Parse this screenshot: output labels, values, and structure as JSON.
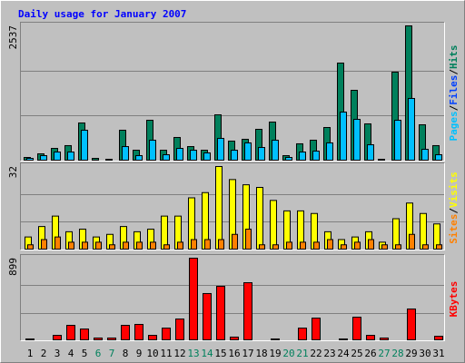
{
  "chart_data": {
    "type": "bar",
    "title": "Daily usage for January 2007",
    "categories": [
      "1",
      "2",
      "3",
      "4",
      "5",
      "6",
      "7",
      "8",
      "9",
      "10",
      "11",
      "12",
      "13",
      "14",
      "15",
      "16",
      "17",
      "18",
      "19",
      "20",
      "21",
      "22",
      "23",
      "24",
      "25",
      "26",
      "27",
      "28",
      "29",
      "30",
      "31"
    ],
    "category_colors": [
      "#000000",
      "#000000",
      "#000000",
      "#000000",
      "#000000",
      "#00805c",
      "#00805c",
      "#000000",
      "#000000",
      "#000000",
      "#000000",
      "#000000",
      "#00805c",
      "#00805c",
      "#000000",
      "#000000",
      "#000000",
      "#000000",
      "#000000",
      "#00805c",
      "#00805c",
      "#000000",
      "#000000",
      "#000000",
      "#000000",
      "#000000",
      "#00805c",
      "#00805c",
      "#000000",
      "#000000",
      "#000000"
    ],
    "separator": "/",
    "panels": [
      {
        "ylim": [
          0,
          2537
        ],
        "yticks": [
          2537
        ],
        "legend": [
          {
            "label": "Pages",
            "color": "#00c0ff"
          },
          {
            "label": "Files",
            "color": "#0040ff"
          },
          {
            "label": "Hits",
            "color": "#00805c"
          }
        ],
        "series": [
          {
            "name": "Hits",
            "color": "#00805c",
            "values": [
              68,
              136,
              238,
              290,
              715,
              51,
              34,
              579,
              204,
              766,
              204,
              443,
              272,
              204,
              868,
              375,
              409,
              596,
              732,
              102,
              324,
              392,
              630,
              1839,
              1328,
              698,
              34,
              1669,
              2537,
              681,
              290
            ]
          },
          {
            "name": "Pages",
            "color": "#00c0ff",
            "values": [
              51,
              102,
              170,
              170,
              579,
              0,
              0,
              272,
              102,
              392,
              119,
              238,
              204,
              153,
              426,
              204,
              341,
              255,
              392,
              68,
              170,
              187,
              341,
              919,
              783,
              306,
              0,
              766,
              1175,
              221,
              119
            ]
          }
        ]
      },
      {
        "ylim": [
          0,
          32
        ],
        "yticks": [
          32
        ],
        "legend": [
          {
            "label": "Sites",
            "color": "#ff8000"
          },
          {
            "label": "Visits",
            "color": "#ffff00"
          }
        ],
        "series": [
          {
            "name": "Visits",
            "color": "#ffff00",
            "values": [
              5,
              9,
              13,
              7,
              8,
              5,
              6,
              9,
              7,
              8,
              13,
              13,
              20,
              22,
              32,
              27,
              25,
              24,
              19,
              15,
              15,
              14,
              7,
              4,
              5,
              7,
              3,
              12,
              18,
              14,
              10
            ]
          },
          {
            "name": "Sites",
            "color": "#ff8000",
            "values": [
              2,
              4,
              5,
              3,
              3,
              3,
              2,
              3,
              3,
              3,
              2,
              3,
              4,
              4,
              4,
              6,
              8,
              2,
              2,
              3,
              3,
              3,
              4,
              2,
              3,
              4,
              2,
              2,
              6,
              2,
              2
            ]
          }
        ]
      },
      {
        "ylim": [
          0,
          899
        ],
        "yticks": [
          899
        ],
        "legend": [
          {
            "label": "KBytes",
            "color": "#ff0000"
          }
        ],
        "series": [
          {
            "name": "KBytes",
            "color": "#ff0000",
            "values": [
              20,
              0,
              59,
              168,
              128,
              30,
              30,
              168,
              178,
              59,
              138,
              237,
              899,
              514,
              593,
              40,
              632,
              0,
              20,
              0,
              138,
              247,
              0,
              20,
              257,
              59,
              30,
              0,
              346,
              0,
              49
            ]
          }
        ]
      }
    ]
  }
}
